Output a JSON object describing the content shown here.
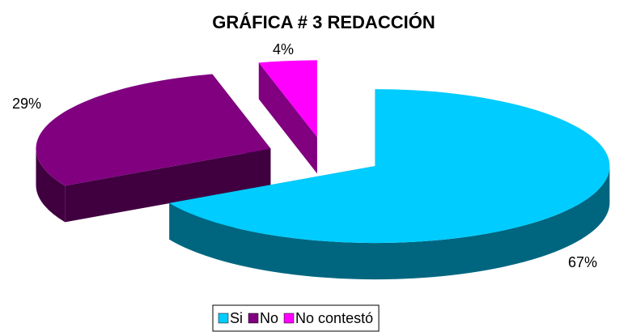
{
  "chart_data": {
    "type": "pie3d",
    "title": "GRÁFICA # 3 REDACCIÓN",
    "categories": [
      "Si",
      "No",
      "No contestó"
    ],
    "values": [
      67,
      29,
      4
    ],
    "value_labels": [
      "67%",
      "29%",
      "4%"
    ],
    "colors": [
      "#00ccff",
      "#800080",
      "#ff00ff"
    ],
    "legend": "bottom"
  }
}
